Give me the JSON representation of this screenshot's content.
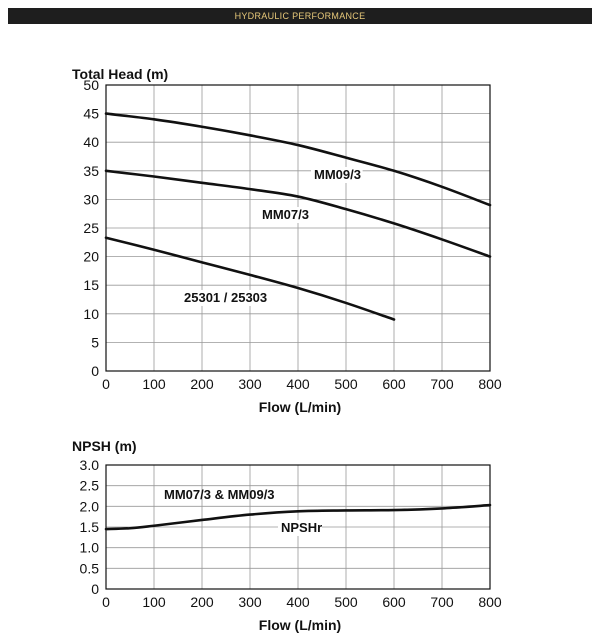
{
  "header": {
    "title": "HYDRAULIC PERFORMANCE"
  },
  "colors": {
    "banner_bg": "#1e1e1e",
    "banner_text": "#e8c97a",
    "line": "#111111",
    "grid": "#999999"
  },
  "chart_data": [
    {
      "type": "line",
      "title": "",
      "ylabel": "Total Head (m)",
      "xlabel": "Flow (L/min)",
      "xlim": [
        0,
        800
      ],
      "ylim": [
        0,
        50
      ],
      "xticks": [
        "0",
        "100",
        "200",
        "300",
        "400",
        "500",
        "600",
        "700",
        "800"
      ],
      "yticks": [
        "0",
        "5",
        "10",
        "15",
        "20",
        "25",
        "30",
        "35",
        "40",
        "45",
        "50"
      ],
      "grid": true,
      "series": [
        {
          "name": "MM09/3",
          "x": [
            0,
            100,
            200,
            300,
            400,
            500,
            600,
            700,
            800
          ],
          "y": [
            45,
            44,
            42.7,
            41.2,
            39.5,
            37.3,
            35,
            32.2,
            29
          ]
        },
        {
          "name": "MM07/3",
          "x": [
            0,
            100,
            200,
            300,
            400,
            500,
            600,
            700,
            800
          ],
          "y": [
            35,
            34,
            32.9,
            31.8,
            30.5,
            28.3,
            25.8,
            23,
            20
          ]
        },
        {
          "name": "25301 / 25303",
          "x": [
            0,
            100,
            200,
            300,
            400,
            500,
            600
          ],
          "y": [
            23.3,
            21.2,
            19,
            16.8,
            14.5,
            11.9,
            9
          ]
        }
      ]
    },
    {
      "type": "line",
      "title": "",
      "ylabel": "NPSH (m)",
      "xlabel": "Flow (L/min)",
      "xlim": [
        0,
        800
      ],
      "ylim": [
        0,
        3
      ],
      "xticks": [
        "0",
        "100",
        "200",
        "300",
        "400",
        "500",
        "600",
        "700",
        "800"
      ],
      "yticks": [
        "0",
        "0.5",
        "1.0",
        "1.5",
        "2.0",
        "2.5",
        "3.0"
      ],
      "grid": true,
      "annotation": "MM07/3 & MM09/3",
      "series": [
        {
          "name": "NPSHr",
          "x": [
            0,
            50,
            100,
            200,
            300,
            400,
            500,
            600,
            700,
            800
          ],
          "y": [
            1.45,
            1.47,
            1.53,
            1.67,
            1.8,
            1.88,
            1.9,
            1.91,
            1.95,
            2.03
          ]
        }
      ]
    }
  ]
}
